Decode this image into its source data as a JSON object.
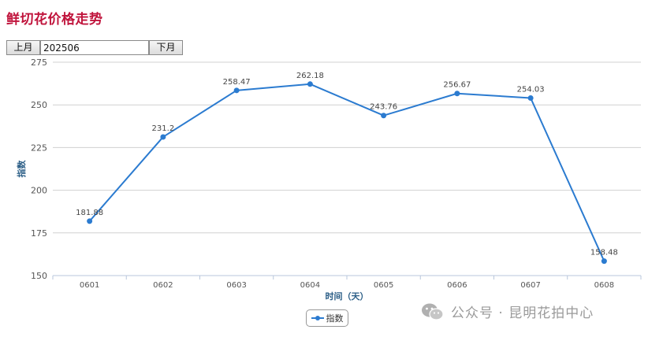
{
  "page": {
    "title": "鲜切花价格走势",
    "prev_label": "上月",
    "next_label": "下月",
    "month_value": "202506"
  },
  "watermark": {
    "text": "公众号 · 昆明花拍中心"
  },
  "colors": {
    "title": "#c0143c",
    "series": "#2b7bd0",
    "axis_title": "#2a5d86",
    "grid": "#d0d0d0"
  },
  "chart_data": {
    "type": "line",
    "xlabel": "时间（天）",
    "ylabel": "指数",
    "categories": [
      "0601",
      "0602",
      "0603",
      "0604",
      "0605",
      "0606",
      "0607",
      "0608"
    ],
    "series": [
      {
        "name": "指数",
        "values": [
          181.88,
          231.2,
          258.47,
          262.18,
          243.76,
          256.67,
          254.03,
          158.48
        ],
        "labels": [
          "181.88",
          "231.2",
          "258.47",
          "262.18",
          "243.76",
          "256.67",
          "254.03",
          "158.48"
        ]
      }
    ],
    "ylim": [
      150,
      275
    ],
    "yticks": [
      150,
      175,
      200,
      225,
      250,
      275
    ],
    "grid": true,
    "legend": "bottom-center"
  }
}
